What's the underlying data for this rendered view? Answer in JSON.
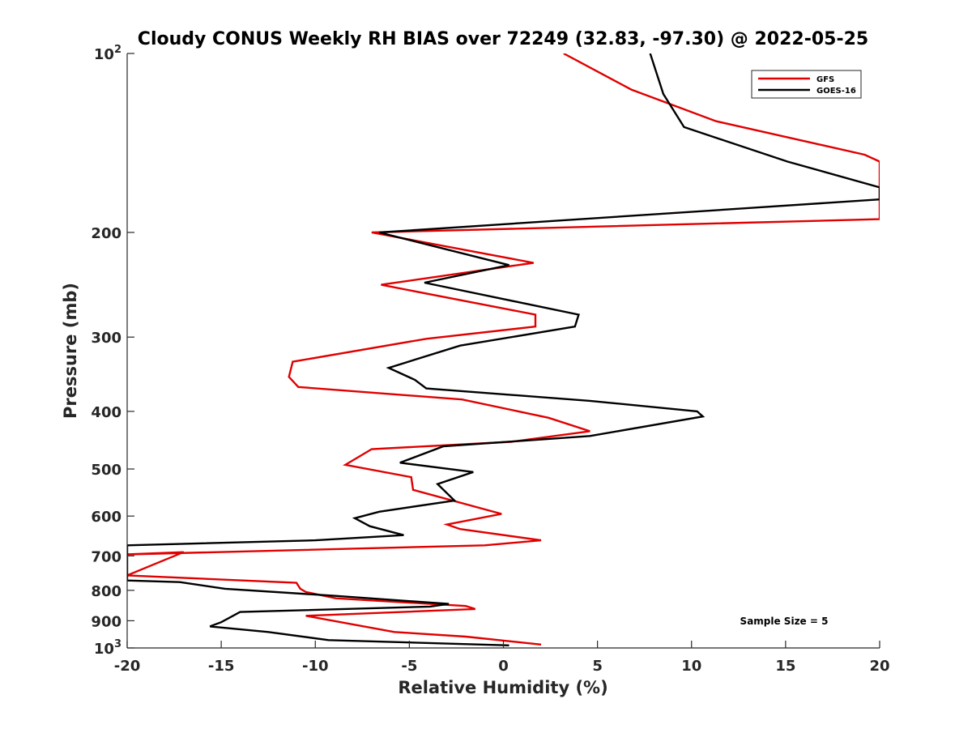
{
  "chart_data": {
    "type": "line",
    "title": "Cloudy CONUS Weekly RH BIAS over 72249 (32.83, -97.30) @ 2022-05-25",
    "xlabel": "Relative Humidity (%)",
    "ylabel": "Pressure (mb)",
    "xlim": [
      -20,
      20
    ],
    "ylim": [
      100,
      1000
    ],
    "y_scale": "log",
    "y_reversed": true,
    "grid": false,
    "legend_position": "top-right",
    "x_ticks": [
      -20,
      -15,
      -10,
      -5,
      0,
      5,
      10,
      15,
      20
    ],
    "x_tick_labels": [
      "-20",
      "-15",
      "-10",
      "-5",
      "0",
      "5",
      "10",
      "15",
      "20"
    ],
    "y_ticks": [
      100,
      200,
      300,
      400,
      500,
      600,
      700,
      800,
      900,
      1000
    ],
    "y_tick_labels": [
      {
        "text": "10",
        "sup": "2"
      },
      {
        "text": "200",
        "sup": ""
      },
      {
        "text": "300",
        "sup": ""
      },
      {
        "text": "400",
        "sup": ""
      },
      {
        "text": "500",
        "sup": ""
      },
      {
        "text": "600",
        "sup": ""
      },
      {
        "text": "700",
        "sup": ""
      },
      {
        "text": "800",
        "sup": ""
      },
      {
        "text": "900",
        "sup": ""
      },
      {
        "text": "10",
        "sup": "3"
      }
    ],
    "annotation": "Sample Size = 5",
    "series": [
      {
        "name": "GFS",
        "color": "#e00000",
        "points": [
          [
            3.2,
            100
          ],
          [
            6.8,
            115
          ],
          [
            11.3,
            130
          ],
          [
            19.2,
            148
          ],
          [
            20,
            152
          ],
          [
            20,
            190
          ],
          [
            -7.0,
            200
          ],
          [
            1.6,
            225
          ],
          [
            -6.5,
            245
          ],
          [
            1.7,
            275
          ],
          [
            1.7,
            288
          ],
          [
            -4.1,
            302
          ],
          [
            -11.2,
            330
          ],
          [
            -11.4,
            350
          ],
          [
            -10.9,
            364
          ],
          [
            -2.2,
            382
          ],
          [
            2.4,
            410
          ],
          [
            4.6,
            432
          ],
          [
            0.4,
            450
          ],
          [
            -7.0,
            463
          ],
          [
            -8.4,
            492
          ],
          [
            -4.9,
            516
          ],
          [
            -4.8,
            542
          ],
          [
            -0.1,
            595
          ],
          [
            -3.0,
            620
          ],
          [
            -2.3,
            631
          ],
          [
            2.0,
            659
          ],
          [
            -1.0,
            672
          ],
          [
            -20,
            696
          ],
          [
            -17.0,
            690
          ],
          [
            -20,
            755
          ],
          [
            -11.0,
            777
          ],
          [
            -10.8,
            795
          ],
          [
            -10.5,
            805
          ],
          [
            -8.9,
            825
          ],
          [
            -2.0,
            850
          ],
          [
            -1.5,
            860
          ],
          [
            -10.5,
            883
          ],
          [
            -5.8,
            940
          ],
          [
            -2.0,
            957
          ],
          [
            2.0,
            987
          ]
        ]
      },
      {
        "name": "GOES-16",
        "color": "#000000",
        "points": [
          [
            7.8,
            100
          ],
          [
            8.5,
            117
          ],
          [
            9.6,
            133
          ],
          [
            15.1,
            152
          ],
          [
            20,
            168
          ],
          [
            20,
            176
          ],
          [
            -6.6,
            200
          ],
          [
            0.3,
            227
          ],
          [
            -4.2,
            243
          ],
          [
            4.0,
            275
          ],
          [
            3.8,
            288
          ],
          [
            -2.3,
            310
          ],
          [
            -6.1,
            338
          ],
          [
            -4.7,
            354
          ],
          [
            -4.1,
            366
          ],
          [
            4.6,
            384
          ],
          [
            10.3,
            400
          ],
          [
            10.6,
            408
          ],
          [
            4.6,
            440
          ],
          [
            -3.2,
            458
          ],
          [
            -5.5,
            488
          ],
          [
            -1.6,
            506
          ],
          [
            -3.5,
            530
          ],
          [
            -2.6,
            565
          ],
          [
            -6.6,
            590
          ],
          [
            -7.9,
            605
          ],
          [
            -7.1,
            624
          ],
          [
            -5.3,
            646
          ],
          [
            -10.0,
            659
          ],
          [
            -20,
            672
          ],
          [
            -20,
            770
          ],
          [
            -17.2,
            775
          ],
          [
            -14.8,
            795
          ],
          [
            -9.0,
            817
          ],
          [
            -2.9,
            843
          ],
          [
            -3.9,
            852
          ],
          [
            -14.0,
            870
          ],
          [
            -15.0,
            905
          ],
          [
            -15.6,
            920
          ],
          [
            -12.5,
            940
          ],
          [
            -9.3,
            970
          ],
          [
            0.3,
            990
          ]
        ]
      }
    ]
  }
}
